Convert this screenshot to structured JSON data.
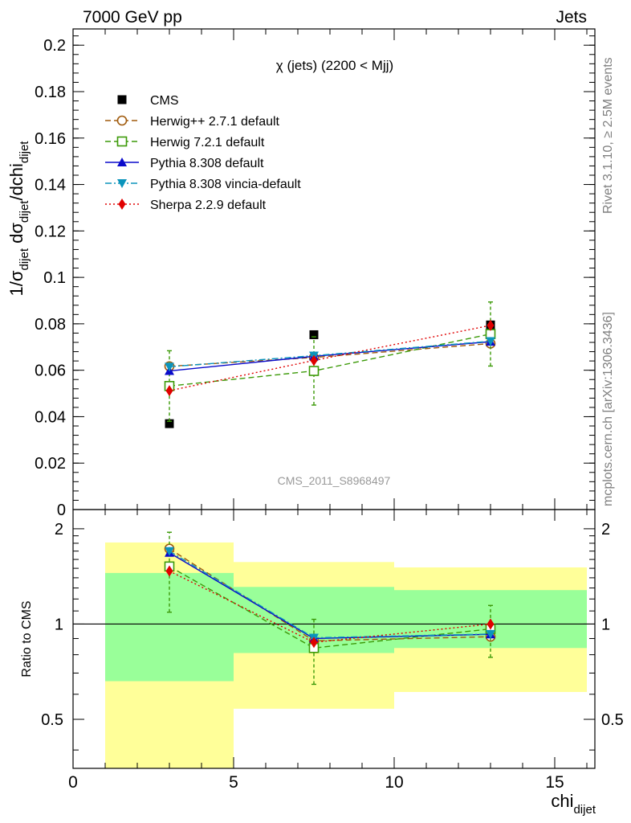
{
  "header": {
    "left": "7000 GeV pp",
    "right": "Jets"
  },
  "side_labels": {
    "rivet": "Rivet 3.1.10, ≥ 2.5M events",
    "mcplots": "mcplots.cern.ch [arXiv:1306.3436]"
  },
  "chart_data": [
    {
      "type": "scatter",
      "title": "χ (jets) (2200 < Mjj)",
      "watermark": "CMS_2011_S8968497",
      "ylabel": "1/σdijet dσdijet/dchidijet",
      "ylim": [
        0,
        0.207
      ],
      "xlim": [
        0,
        16.25
      ],
      "yticks": [
        0,
        0.02,
        0.04,
        0.06,
        0.08,
        0.1,
        0.12,
        0.14,
        0.16,
        0.18,
        0.2
      ],
      "ytick_labels": [
        "0",
        "0.02",
        "0.04",
        "0.06",
        "0.08",
        "0.1",
        "0.12",
        "0.14",
        "0.16",
        "0.18",
        "0.2"
      ],
      "legend_position": "top-left",
      "x": [
        3,
        7.5,
        13
      ],
      "series": [
        {
          "name": "CMS",
          "color": "#000000",
          "marker": "square-filled",
          "values": [
            0.037,
            0.0753,
            0.0795
          ]
        },
        {
          "name": "Herwig++ 2.7.1 default",
          "color": "#a05a0c",
          "marker": "circle-open",
          "line": "dashed",
          "values": [
            0.0617,
            0.0655,
            0.0715
          ],
          "errors": [
            0,
            0,
            0
          ]
        },
        {
          "name": "Herwig 7.2.1 default",
          "color": "#3c9a08",
          "marker": "square-open",
          "line": "dashed",
          "values": [
            0.0532,
            0.0597,
            0.0756
          ],
          "errors": [
            0.0152,
            0.0147,
            0.0138
          ]
        },
        {
          "name": "Pythia 8.308 default",
          "color": "#0a0acb",
          "marker": "triangle-up",
          "line": "solid",
          "values": [
            0.0597,
            0.066,
            0.0723
          ],
          "errors": [
            0,
            0,
            0
          ]
        },
        {
          "name": "Pythia 8.308 vincia-default",
          "color": "#0b94bc",
          "marker": "triangle-down",
          "line": "dashdot",
          "values": [
            0.0615,
            0.0663,
            0.0725
          ],
          "errors": [
            0,
            0,
            0
          ]
        },
        {
          "name": "Sherpa 2.2.9 default",
          "color": "#e00000",
          "marker": "diamond",
          "line": "dotted",
          "values": [
            0.0512,
            0.0642,
            0.0793
          ],
          "errors": [
            0,
            0,
            0
          ]
        }
      ]
    },
    {
      "type": "line",
      "ylabel": "Ratio to CMS",
      "xlabel": "chidijet",
      "xlim": [
        0,
        16.25
      ],
      "ylim": [
        0.35,
        2.3
      ],
      "xticks": [
        0,
        5,
        10,
        15
      ],
      "xtick_labels": [
        "0",
        "5",
        "10",
        "15"
      ],
      "yticks": [
        0.5,
        1,
        2
      ],
      "ytick_labels": [
        "0.5",
        "1",
        "2"
      ],
      "bands": [
        {
          "x": [
            1,
            5
          ],
          "yellow": [
            0.35,
            1.81
          ],
          "green": [
            0.66,
            1.45
          ]
        },
        {
          "x": [
            5,
            10
          ],
          "yellow": [
            0.54,
            1.57
          ],
          "green": [
            0.81,
            1.31
          ]
        },
        {
          "x": [
            10,
            16
          ],
          "yellow": [
            0.61,
            1.51
          ],
          "green": [
            0.84,
            1.28
          ]
        }
      ],
      "x": [
        3,
        7.5,
        13
      ],
      "series": [
        {
          "name": "Herwig++ 2.7.1 default",
          "values": [
            1.73,
            0.885,
            0.912
          ]
        },
        {
          "name": "Herwig 7.2.1 default",
          "values": [
            1.52,
            0.84,
            0.965
          ],
          "errors": [
            0.43,
            0.195,
            0.18
          ]
        },
        {
          "name": "Pythia 8.308 default",
          "values": [
            1.68,
            0.9,
            0.928
          ]
        },
        {
          "name": "Pythia 8.308 vincia-default",
          "values": [
            1.7,
            0.905,
            0.93
          ]
        },
        {
          "name": "Sherpa 2.2.9 default",
          "values": [
            1.47,
            0.875,
            1.0
          ]
        }
      ]
    }
  ]
}
